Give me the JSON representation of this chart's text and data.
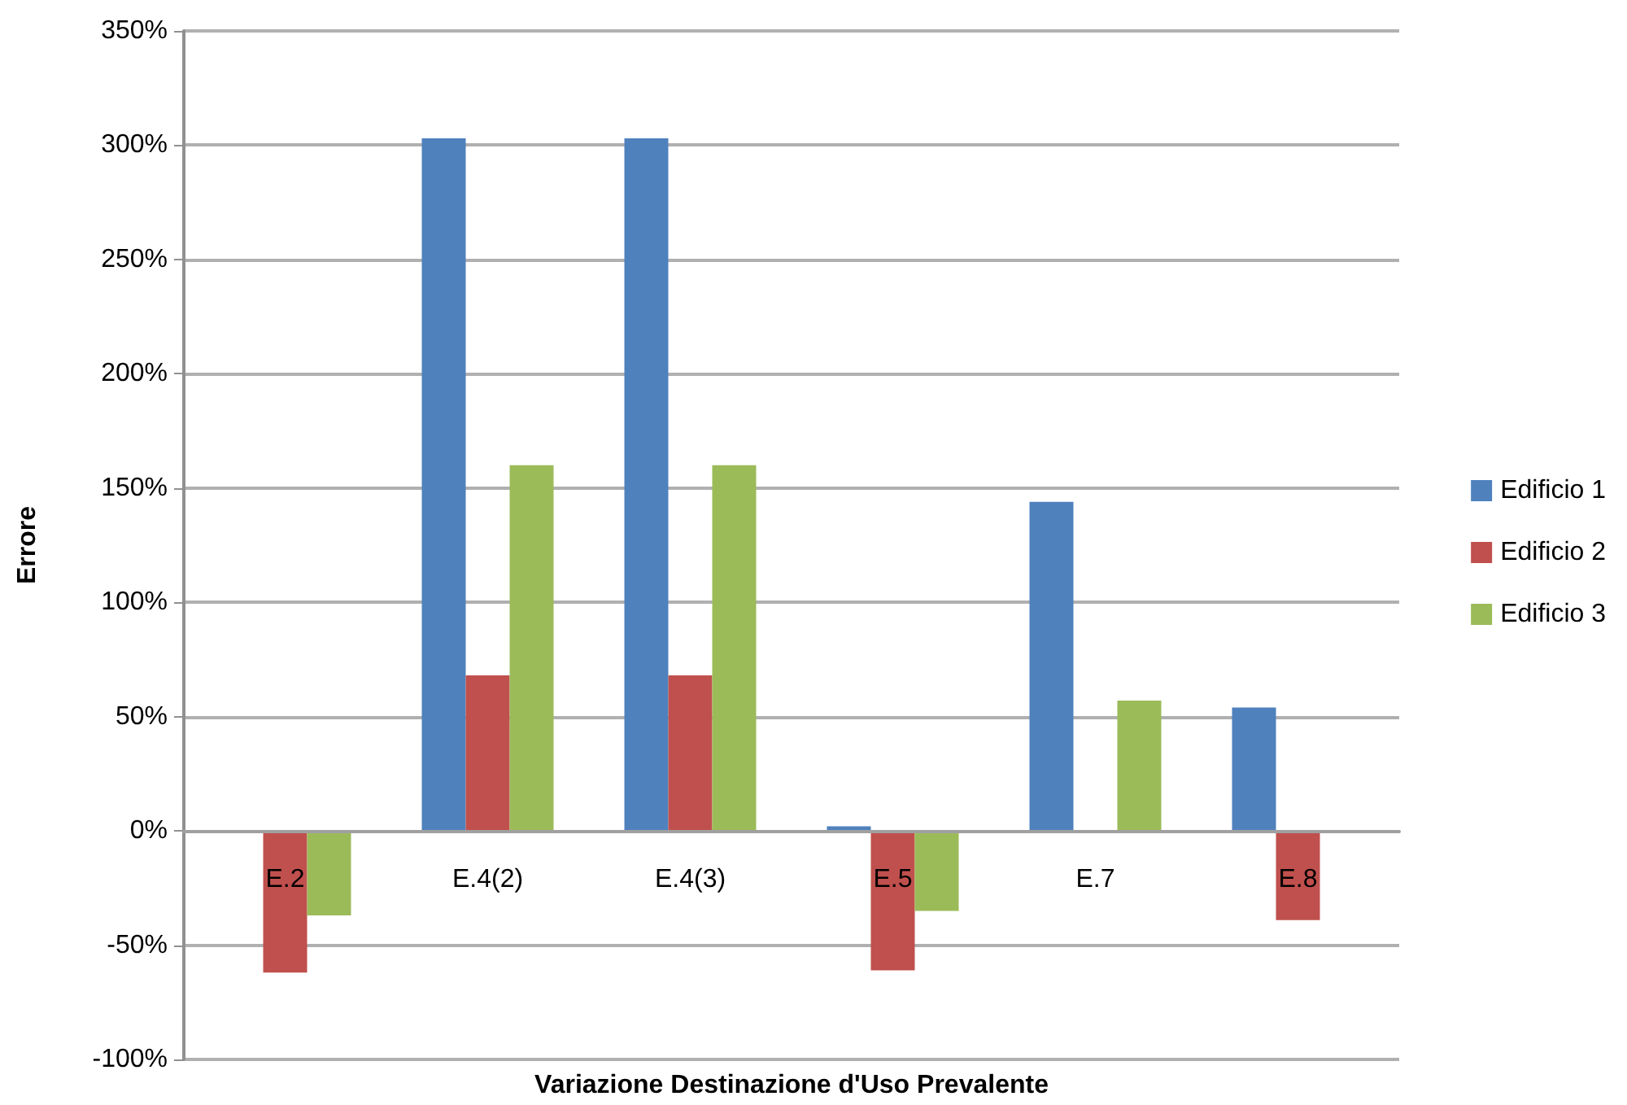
{
  "chart_data": {
    "type": "bar",
    "xlabel": "Variazione Destinazione d'Uso Prevalente",
    "ylabel": "Errore",
    "categories": [
      "E.2",
      "E.4(2)",
      "E.4(3)",
      "E.5",
      "E.7",
      "E.8"
    ],
    "series": [
      {
        "name": "Edificio 1",
        "color": "#4f81bd",
        "values": [
          null,
          303,
          303,
          2,
          144,
          54
        ]
      },
      {
        "name": "Edificio 2",
        "color": "#c0504d",
        "values": [
          -62,
          68,
          68,
          -61,
          null,
          -39
        ]
      },
      {
        "name": "Edificio 3",
        "color": "#9bbb59",
        "values": [
          -37,
          160,
          160,
          -35,
          57,
          null
        ]
      }
    ],
    "ylim": [
      -100,
      350
    ],
    "yticks": [
      {
        "value": -100,
        "label": "-100%"
      },
      {
        "value": -50,
        "label": "-50%"
      },
      {
        "value": 0,
        "label": "0%"
      },
      {
        "value": 50,
        "label": "50%"
      },
      {
        "value": 100,
        "label": "100%"
      },
      {
        "value": 150,
        "label": "150%"
      },
      {
        "value": 200,
        "label": "200%"
      },
      {
        "value": 250,
        "label": "250%"
      },
      {
        "value": 300,
        "label": "300%"
      },
      {
        "value": 350,
        "label": "350%"
      }
    ],
    "grid": "y",
    "legend": "right"
  }
}
